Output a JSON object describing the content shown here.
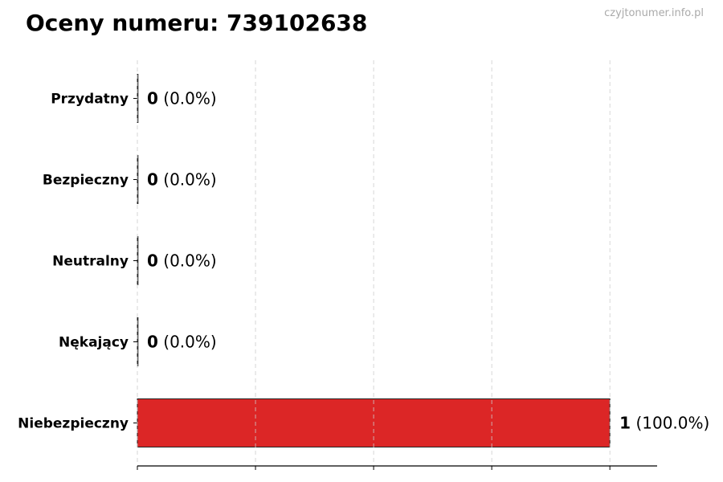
{
  "title": "Oceny numeru: 739102638",
  "watermark": "czyjtonumer.info.pl",
  "chart_data": {
    "type": "bar",
    "orientation": "horizontal",
    "title": "Oceny numeru: 739102638",
    "categories": [
      "Przydatny",
      "Bezpieczny",
      "Neutralny",
      "Nękający",
      "Niebezpieczny"
    ],
    "values": [
      0,
      0,
      0,
      0,
      1
    ],
    "percent_labels": [
      "(0.0%)",
      "(0.0%)",
      "(0.0%)",
      "(0.0%)",
      "(100.0%)"
    ],
    "xlim": [
      0,
      1.1
    ],
    "xticks": [
      0,
      0.25,
      0.5,
      0.75,
      1.0
    ],
    "grid": "x dashed",
    "bar_color": "#dc2626",
    "edge_color": "#222222",
    "xlabel": "",
    "ylabel": ""
  }
}
